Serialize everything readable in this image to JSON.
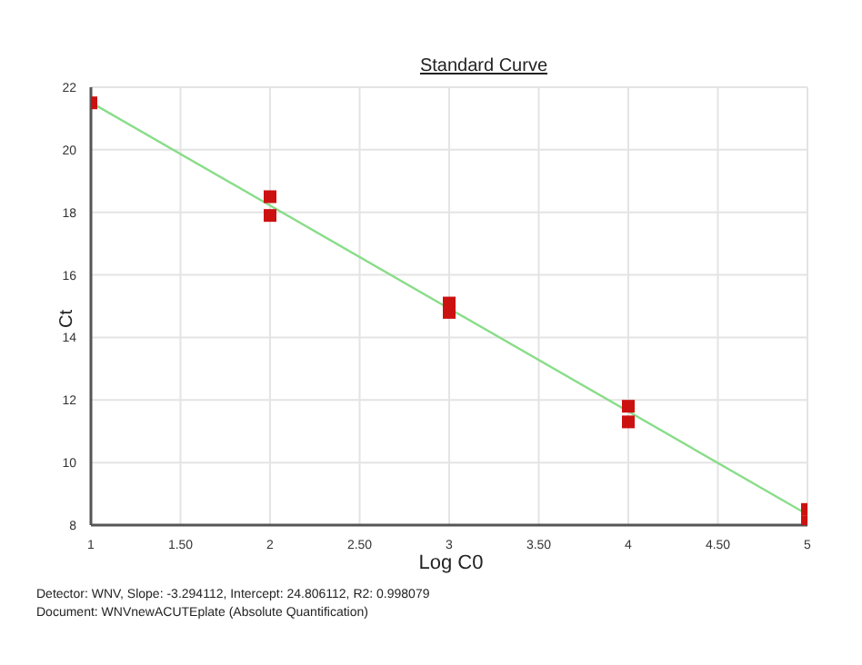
{
  "chart_data": {
    "type": "scatter",
    "title": "Standard Curve",
    "xlabel": "Log C0",
    "ylabel": "Ct",
    "series": [
      {
        "color": "#cc1111",
        "marker": "square",
        "x": [
          1,
          2,
          2,
          3,
          3,
          4,
          4,
          5,
          5
        ],
        "values": [
          21.5,
          18.5,
          17.9,
          15.1,
          14.8,
          11.8,
          11.3,
          8.5,
          8.1
        ]
      },
      {
        "type": "line",
        "color": "#88dd88",
        "marker": "none",
        "x": [
          1,
          5
        ],
        "values": [
          21.51,
          8.34
        ]
      }
    ],
    "xlim": [
      1,
      5
    ],
    "xticks": [
      1,
      {
        "value": 1.5,
        "label": "1.50"
      },
      2,
      {
        "value": 2.5,
        "label": "2.50"
      },
      3,
      {
        "value": 3.5,
        "label": "3.50"
      },
      4,
      {
        "value": 4.5,
        "label": "4.50"
      },
      5
    ],
    "ylim": [
      8,
      22
    ],
    "yticks": [
      8,
      10,
      12,
      14,
      16,
      18,
      20,
      22
    ],
    "grid": true,
    "legend": false,
    "annotations": [
      "Detector: WNV, Slope:  -3.294112, Intercept:  24.806112, R2:  0.998079",
      "Document: WNVnewACUTEplate (Absolute Quantification)"
    ]
  }
}
